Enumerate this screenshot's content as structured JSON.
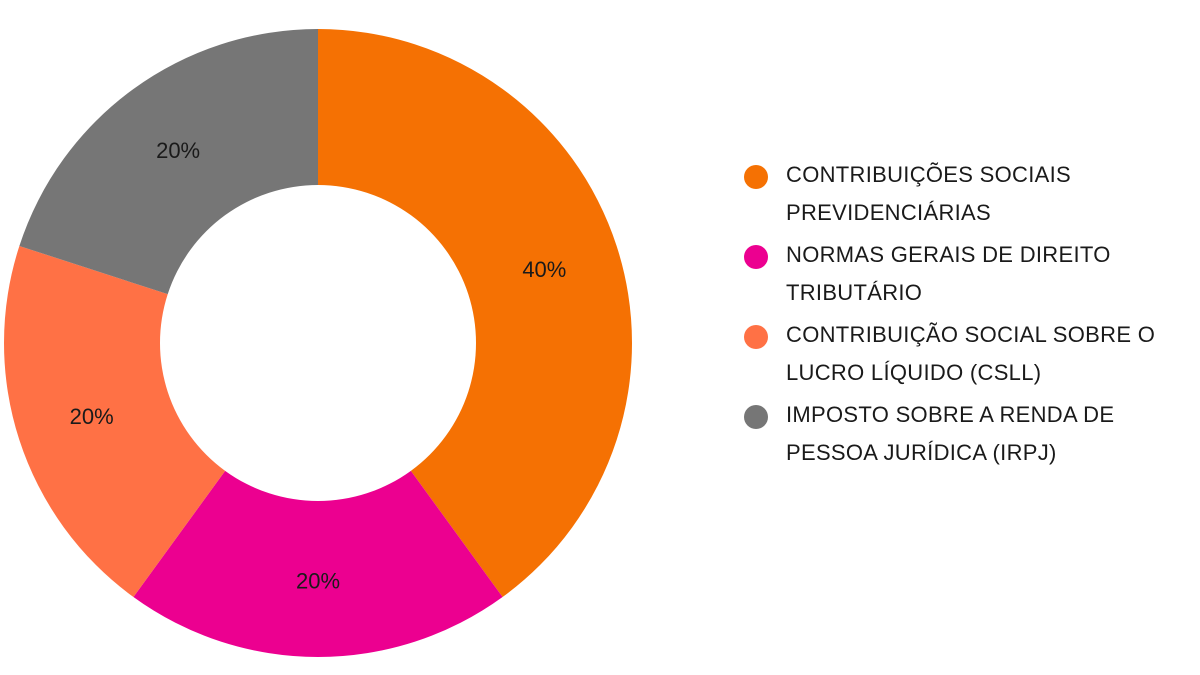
{
  "chart_data": {
    "type": "pie",
    "variant": "donut",
    "title": "",
    "legend_position": "right",
    "slices": [
      {
        "label": "CONTRIBUIÇÕES SOCIAIS PREVIDENCIÁRIAS",
        "value": 40,
        "display": "40%",
        "color": "#f57103"
      },
      {
        "label": "NORMAS GERAIS DE DIREITO TRIBUTÁRIO",
        "value": 20,
        "display": "20%",
        "color": "#ec0090"
      },
      {
        "label": "CONTRIBUIÇÃO SOCIAL SOBRE O LUCRO LÍQUIDO (CSLL)",
        "value": 20,
        "display": "20%",
        "color": "#ff7145"
      },
      {
        "label": "IMPOSTO SOBRE A RENDA DE PESSOA JURÍDICA (IRPJ)",
        "value": 20,
        "display": "20%",
        "color": "#767676"
      }
    ]
  }
}
